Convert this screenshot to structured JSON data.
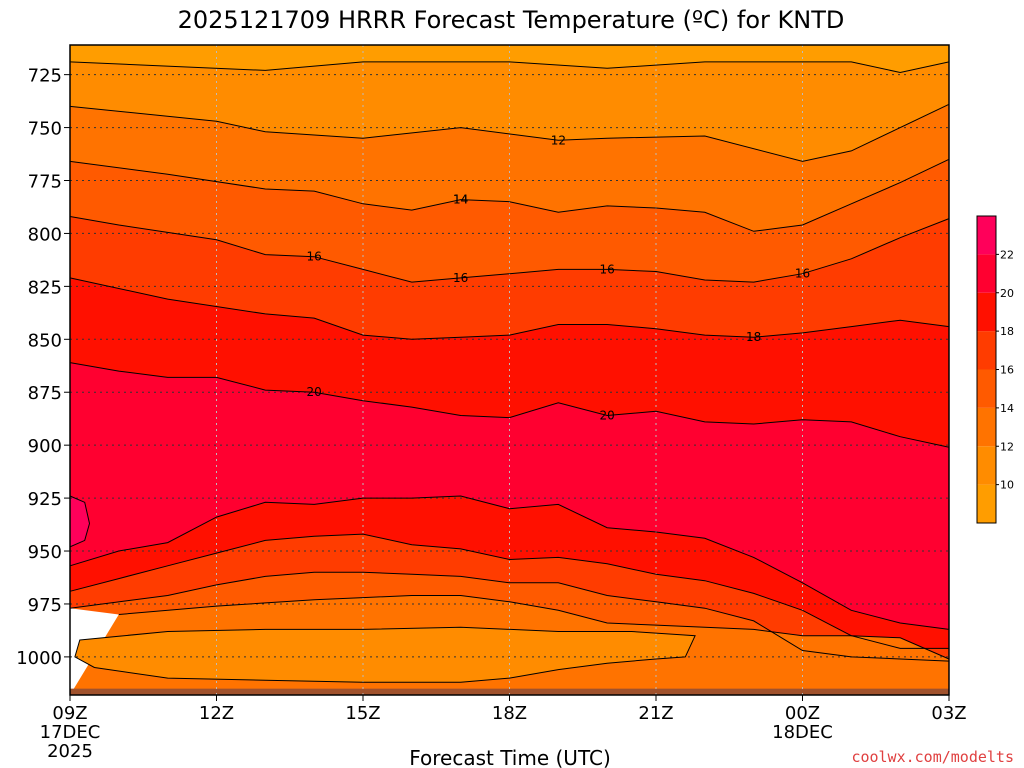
{
  "chart_data": {
    "type": "contour",
    "title": "2025121709 HRRR Forecast Temperature (ºC) for KNTD",
    "xlabel": "Forecast Time (UTC)",
    "x_ticks": [
      {
        "hour": 0,
        "label": "09Z",
        "sub": [
          "17DEC",
          "2025"
        ]
      },
      {
        "hour": 3,
        "label": "12Z",
        "sub": []
      },
      {
        "hour": 6,
        "label": "15Z",
        "sub": []
      },
      {
        "hour": 9,
        "label": "18Z",
        "sub": []
      },
      {
        "hour": 12,
        "label": "21Z",
        "sub": []
      },
      {
        "hour": 15,
        "label": "00Z",
        "sub": [
          "18DEC"
        ]
      },
      {
        "hour": 18,
        "label": "03Z",
        "sub": []
      }
    ],
    "xlim": [
      0,
      18
    ],
    "y_ticks": [
      725,
      750,
      775,
      800,
      825,
      850,
      875,
      900,
      925,
      950,
      975,
      1000
    ],
    "ylim": [
      711,
      1018
    ],
    "colorbar": {
      "levels": [
        8,
        10,
        12,
        14,
        16,
        18,
        20,
        22,
        24
      ],
      "labels": [
        "10",
        "12",
        "14",
        "16",
        "18",
        "20",
        "22"
      ],
      "colors": [
        "#ff9d00",
        "#ff8c00",
        "#ff7300",
        "#ff5a00",
        "#ff3c00",
        "#ff1000",
        "#ff0030",
        "#ff005a"
      ]
    },
    "ground_color": "#a0522d",
    "contours": [
      {
        "level": 10,
        "points": [
          [
            0,
            719
          ],
          [
            4,
            723
          ],
          [
            6,
            719
          ],
          [
            9,
            719
          ],
          [
            11,
            722
          ],
          [
            13,
            719
          ],
          [
            16,
            719
          ],
          [
            17,
            724
          ],
          [
            18,
            719
          ]
        ]
      },
      {
        "level": 12,
        "points": [
          [
            0,
            740
          ],
          [
            3,
            747
          ],
          [
            4,
            752
          ],
          [
            6,
            755
          ],
          [
            8,
            750
          ],
          [
            10,
            756
          ],
          [
            11,
            755
          ],
          [
            13,
            754
          ],
          [
            15,
            766
          ],
          [
            16,
            761
          ],
          [
            17,
            750
          ],
          [
            18,
            739
          ]
        ]
      },
      {
        "level": 14,
        "points": [
          [
            0,
            766
          ],
          [
            2,
            772
          ],
          [
            4,
            779
          ],
          [
            5,
            780
          ],
          [
            6,
            786
          ],
          [
            7,
            789
          ],
          [
            8,
            784
          ],
          [
            9,
            785
          ],
          [
            10,
            790
          ],
          [
            11,
            787
          ],
          [
            12,
            788
          ],
          [
            13,
            790
          ],
          [
            14,
            799
          ],
          [
            15,
            796
          ],
          [
            16,
            786
          ],
          [
            17,
            776
          ],
          [
            18,
            765
          ]
        ]
      },
      {
        "level": 16,
        "points": [
          [
            0,
            792
          ],
          [
            1,
            796
          ],
          [
            3,
            803
          ],
          [
            4,
            810
          ],
          [
            5,
            811
          ],
          [
            6,
            817
          ],
          [
            7,
            823
          ],
          [
            8,
            821
          ],
          [
            9,
            819
          ],
          [
            10,
            817
          ],
          [
            11,
            817
          ],
          [
            12,
            818
          ],
          [
            13,
            822
          ],
          [
            14,
            823
          ],
          [
            15,
            819
          ],
          [
            16,
            812
          ],
          [
            17,
            802
          ],
          [
            18,
            793
          ]
        ]
      },
      {
        "level": 18,
        "points": [
          [
            0,
            821
          ],
          [
            2,
            831
          ],
          [
            4,
            838
          ],
          [
            5,
            840
          ],
          [
            6,
            848
          ],
          [
            7,
            850
          ],
          [
            8,
            849
          ],
          [
            9,
            848
          ],
          [
            10,
            843
          ],
          [
            11,
            843
          ],
          [
            12,
            845
          ],
          [
            13,
            848
          ],
          [
            14,
            849
          ],
          [
            15,
            847
          ],
          [
            16,
            844
          ],
          [
            17,
            841
          ],
          [
            18,
            844
          ]
        ]
      },
      {
        "level": 20,
        "points": [
          [
            0,
            861
          ],
          [
            1,
            865
          ],
          [
            2,
            868
          ],
          [
            3,
            868
          ],
          [
            4,
            874
          ],
          [
            5,
            875
          ],
          [
            6,
            879
          ],
          [
            7,
            882
          ],
          [
            8,
            886
          ],
          [
            9,
            887
          ],
          [
            10,
            880
          ],
          [
            11,
            886
          ],
          [
            12,
            884
          ],
          [
            13,
            889
          ],
          [
            14,
            890
          ],
          [
            15,
            888
          ],
          [
            16,
            889
          ],
          [
            17,
            896
          ],
          [
            18,
            901
          ]
        ]
      },
      {
        "level": 22,
        "closed": true,
        "points": [
          [
            0,
            924
          ],
          [
            0.3,
            927
          ],
          [
            0.4,
            937
          ],
          [
            0.3,
            945
          ],
          [
            0,
            948
          ]
        ]
      },
      {
        "level": 20,
        "points": [
          [
            0,
            957
          ],
          [
            1,
            950
          ],
          [
            2,
            946
          ],
          [
            3,
            934
          ],
          [
            4,
            927
          ],
          [
            5,
            928
          ],
          [
            6,
            925
          ],
          [
            7,
            925
          ],
          [
            8,
            924
          ],
          [
            9,
            930
          ],
          [
            10,
            928
          ],
          [
            11,
            939
          ],
          [
            12,
            941
          ],
          [
            13,
            944
          ],
          [
            14,
            953
          ],
          [
            15,
            965
          ],
          [
            16,
            978
          ],
          [
            17,
            984
          ],
          [
            18,
            987
          ]
        ]
      },
      {
        "level": 18,
        "points": [
          [
            0,
            969
          ],
          [
            1,
            963
          ],
          [
            2,
            957
          ],
          [
            3,
            951
          ],
          [
            4,
            945
          ],
          [
            5,
            943
          ],
          [
            6,
            942
          ],
          [
            7,
            947
          ],
          [
            8,
            949
          ],
          [
            9,
            954
          ],
          [
            10,
            953
          ],
          [
            11,
            956
          ],
          [
            12,
            961
          ],
          [
            13,
            964
          ],
          [
            14,
            970
          ],
          [
            15,
            978
          ],
          [
            16,
            990
          ],
          [
            17,
            996
          ],
          [
            18,
            996
          ]
        ]
      },
      {
        "level": 16,
        "points": [
          [
            0,
            977
          ],
          [
            2,
            971
          ],
          [
            3,
            966
          ],
          [
            4,
            962
          ],
          [
            5,
            960
          ],
          [
            6,
            960
          ],
          [
            7,
            961
          ],
          [
            8,
            962
          ],
          [
            9,
            965
          ],
          [
            10,
            965
          ],
          [
            11,
            971
          ],
          [
            12,
            974
          ],
          [
            13,
            977
          ],
          [
            14,
            983
          ],
          [
            15,
            997
          ],
          [
            16,
            1000
          ],
          [
            17,
            1001
          ],
          [
            18,
            1002
          ]
        ]
      },
      {
        "level": 14,
        "points": [
          [
            1,
            980
          ],
          [
            3,
            976
          ],
          [
            5,
            973
          ],
          [
            6,
            972
          ],
          [
            7,
            971
          ],
          [
            8,
            971
          ],
          [
            9,
            974
          ],
          [
            10,
            978
          ],
          [
            11,
            984
          ],
          [
            12,
            985
          ],
          [
            13,
            986
          ],
          [
            14,
            987
          ],
          [
            15,
            990
          ],
          [
            16,
            990
          ],
          [
            17,
            991
          ],
          [
            18,
            1001
          ]
        ]
      },
      {
        "level": 12,
        "closed": true,
        "points": [
          [
            0.2,
            992
          ],
          [
            2,
            988
          ],
          [
            4,
            987
          ],
          [
            6,
            987
          ],
          [
            8,
            986
          ],
          [
            10,
            988
          ],
          [
            11.5,
            988
          ],
          [
            12.8,
            990
          ],
          [
            12.6,
            1000
          ],
          [
            12,
            1001
          ],
          [
            11,
            1003
          ],
          [
            10,
            1006
          ],
          [
            9,
            1010
          ],
          [
            8,
            1012
          ],
          [
            6,
            1012
          ],
          [
            4,
            1011
          ],
          [
            2,
            1010
          ],
          [
            0.5,
            1005
          ],
          [
            0.1,
            1000
          ]
        ]
      }
    ],
    "contour_labels": [
      {
        "text": "12",
        "hour": 10,
        "level": 12
      },
      {
        "text": "14",
        "hour": 8,
        "level": 14
      },
      {
        "text": "16",
        "hour": 5,
        "level": 16
      },
      {
        "text": "16",
        "hour": 11,
        "level": 16
      },
      {
        "text": "18",
        "hour": 14,
        "level": 18
      },
      {
        "text": "20",
        "hour": 11,
        "level": 20
      },
      {
        "text": "20",
        "hour": 5,
        "level": 20
      },
      {
        "text": "16",
        "hour": 8,
        "level": 16
      },
      {
        "text": "14",
        "hour": 8,
        "level": 14
      },
      {
        "text": "16",
        "hour": 15,
        "level": 16
      }
    ]
  },
  "credit": "coolwx.com/modelts"
}
